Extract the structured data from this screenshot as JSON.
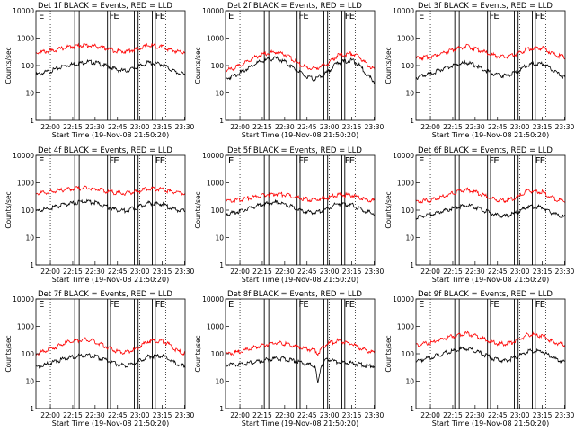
{
  "figure": {
    "xlabel": "Start Time (19-Nov-08 21:50:20)",
    "ylabel": "Counts/sec",
    "x_tick_labels": [
      "22:00",
      "22:15",
      "22:30",
      "22:45",
      "23:00",
      "23:15",
      "23:30"
    ],
    "y_tick_labels": [
      "1",
      "10",
      "100",
      "1000",
      "10000"
    ],
    "colors": {
      "events": "#000000",
      "lld": "#ff0000"
    }
  },
  "chart_data": [
    {
      "type": "line",
      "title": "Det 1f BLACK = Events, RED = LLD",
      "xlabel": "Start Time (19-Nov-08 21:50:20)",
      "ylabel": "Counts/sec",
      "x_unit": "minutes after 21:50:20",
      "xlim": [
        0,
        100
      ],
      "ylim": [
        1,
        10000
      ],
      "yscale": "log",
      "x_ticks": [
        "22:00",
        "22:15",
        "22:30",
        "22:45",
        "23:00",
        "23:15",
        "23:30"
      ],
      "y_ticks": [
        "1",
        "10",
        "100",
        "1000",
        "10000"
      ],
      "flag_labels": [
        "F",
        "E",
        "F",
        "E"
      ],
      "series": [
        {
          "color": "#000000",
          "x": [
            0,
            10,
            20,
            30,
            34,
            40,
            50,
            55,
            60,
            68,
            75,
            85,
            90,
            95,
            100
          ],
          "values": [
            50,
            70,
            110,
            135,
            150,
            140,
            95,
            75,
            70,
            95,
            140,
            120,
            80,
            60,
            50
          ]
        },
        {
          "color": "#ff0000",
          "x": [
            0,
            10,
            20,
            30,
            34,
            40,
            50,
            55,
            60,
            68,
            75,
            85,
            90,
            95,
            100
          ],
          "values": [
            330,
            370,
            500,
            600,
            600,
            560,
            420,
            370,
            360,
            440,
            600,
            520,
            400,
            360,
            350
          ]
        }
      ]
    },
    {
      "type": "line",
      "title": "Det 2f BLACK = Events, RED = LLD",
      "xlabel": "Start Time (19-Nov-08 21:50:20)",
      "ylabel": "Counts/sec",
      "x_unit": "minutes after 21:50:20",
      "xlim": [
        0,
        100
      ],
      "ylim": [
        1,
        10000
      ],
      "yscale": "log",
      "x_ticks": [
        "22:00",
        "22:15",
        "22:30",
        "22:45",
        "23:00",
        "23:15",
        "23:30"
      ],
      "y_ticks": [
        "1",
        "10",
        "100",
        "1000",
        "10000"
      ],
      "flag_labels": [
        "F",
        "E",
        "F",
        "E"
      ],
      "series": [
        {
          "color": "#000000",
          "x": [
            0,
            10,
            20,
            30,
            34,
            40,
            50,
            55,
            60,
            68,
            75,
            85,
            90,
            95,
            100
          ],
          "values": [
            35,
            60,
            130,
            190,
            200,
            150,
            60,
            40,
            35,
            60,
            140,
            170,
            110,
            50,
            28
          ]
        },
        {
          "color": "#ff0000",
          "x": [
            0,
            10,
            20,
            30,
            34,
            40,
            50,
            55,
            60,
            68,
            75,
            85,
            90,
            95,
            100
          ],
          "values": [
            70,
            110,
            230,
            330,
            340,
            280,
            120,
            90,
            85,
            120,
            250,
            300,
            220,
            120,
            75
          ]
        }
      ]
    },
    {
      "type": "line",
      "title": "Det 3f BLACK = Events, RED = LLD",
      "xlabel": "Start Time (19-Nov-08 21:50:20)",
      "ylabel": "Counts/sec",
      "x_unit": "minutes after 21:50:20",
      "xlim": [
        0,
        100
      ],
      "ylim": [
        1,
        10000
      ],
      "yscale": "log",
      "x_ticks": [
        "22:00",
        "22:15",
        "22:30",
        "22:45",
        "23:00",
        "23:15",
        "23:30"
      ],
      "y_ticks": [
        "1",
        "10",
        "100",
        "1000",
        "10000"
      ],
      "flag_labels": [
        "F",
        "E",
        "F",
        "E"
      ],
      "series": [
        {
          "color": "#000000",
          "x": [
            0,
            10,
            20,
            30,
            34,
            40,
            50,
            55,
            60,
            68,
            75,
            85,
            90,
            95,
            100
          ],
          "values": [
            40,
            55,
            90,
            130,
            140,
            110,
            60,
            50,
            45,
            65,
            120,
            130,
            85,
            55,
            40
          ]
        },
        {
          "color": "#ff0000",
          "x": [
            0,
            10,
            20,
            30,
            34,
            40,
            50,
            55,
            60,
            68,
            75,
            85,
            90,
            95,
            100
          ],
          "values": [
            200,
            230,
            350,
            500,
            550,
            450,
            280,
            240,
            230,
            290,
            450,
            480,
            340,
            250,
            220
          ]
        }
      ]
    },
    {
      "type": "line",
      "title": "Det 4f BLACK = Events, RED = LLD",
      "xlabel": "Start Time (19-Nov-08 21:50:20)",
      "ylabel": "Counts/sec",
      "x_unit": "minutes after 21:50:20",
      "xlim": [
        0,
        100
      ],
      "ylim": [
        1,
        10000
      ],
      "yscale": "log",
      "x_ticks": [
        "22:00",
        "22:15",
        "22:30",
        "22:45",
        "23:00",
        "23:15",
        "23:30"
      ],
      "y_ticks": [
        "1",
        "10",
        "100",
        "1000",
        "10000"
      ],
      "flag_labels": [
        "F",
        "E",
        "F",
        "E"
      ],
      "series": [
        {
          "color": "#000000",
          "x": [
            0,
            10,
            20,
            30,
            34,
            40,
            50,
            55,
            60,
            68,
            75,
            85,
            90,
            95,
            100
          ],
          "values": [
            100,
            130,
            180,
            220,
            230,
            200,
            130,
            110,
            105,
            140,
            200,
            180,
            130,
            110,
            100
          ]
        },
        {
          "color": "#ff0000",
          "x": [
            0,
            10,
            20,
            30,
            34,
            40,
            50,
            55,
            60,
            68,
            75,
            85,
            90,
            95,
            100
          ],
          "values": [
            450,
            500,
            620,
            700,
            720,
            650,
            500,
            460,
            450,
            520,
            680,
            620,
            520,
            480,
            450
          ]
        }
      ]
    },
    {
      "type": "line",
      "title": "Det 5f BLACK = Events, RED = LLD",
      "xlabel": "Start Time (19-Nov-08 21:50:20)",
      "ylabel": "Counts/sec",
      "x_unit": "minutes after 21:50:20",
      "xlim": [
        0,
        100
      ],
      "ylim": [
        1,
        10000
      ],
      "yscale": "log",
      "x_ticks": [
        "22:00",
        "22:15",
        "22:30",
        "22:45",
        "23:00",
        "23:15",
        "23:30"
      ],
      "y_ticks": [
        "1",
        "10",
        "100",
        "1000",
        "10000"
      ],
      "flag_labels": [
        "F",
        "E",
        "F",
        "E"
      ],
      "series": [
        {
          "color": "#000000",
          "x": [
            0,
            10,
            20,
            30,
            34,
            40,
            50,
            55,
            60,
            68,
            75,
            85,
            90,
            95,
            100
          ],
          "values": [
            80,
            100,
            150,
            200,
            210,
            180,
            110,
            95,
            90,
            120,
            190,
            170,
            120,
            95,
            80
          ]
        },
        {
          "color": "#ff0000",
          "x": [
            0,
            10,
            20,
            30,
            34,
            40,
            50,
            55,
            60,
            68,
            75,
            85,
            90,
            95,
            100
          ],
          "values": [
            240,
            270,
            340,
            420,
            440,
            400,
            290,
            270,
            260,
            300,
            400,
            380,
            300,
            260,
            240
          ]
        }
      ]
    },
    {
      "type": "line",
      "title": "Det 6f BLACK = Events, RED = LLD",
      "xlabel": "Start Time (19-Nov-08 21:50:20)",
      "ylabel": "Counts/sec",
      "x_unit": "minutes after 21:50:20",
      "xlim": [
        0,
        100
      ],
      "ylim": [
        1,
        10000
      ],
      "yscale": "log",
      "x_ticks": [
        "22:00",
        "22:15",
        "22:30",
        "22:45",
        "23:00",
        "23:15",
        "23:30"
      ],
      "y_ticks": [
        "1",
        "10",
        "100",
        "1000",
        "10000"
      ],
      "flag_labels": [
        "F",
        "E",
        "F",
        "E"
      ],
      "series": [
        {
          "color": "#000000",
          "x": [
            0,
            10,
            20,
            30,
            34,
            40,
            50,
            55,
            60,
            68,
            75,
            85,
            90,
            95,
            100
          ],
          "values": [
            60,
            75,
            110,
            150,
            160,
            140,
            85,
            70,
            65,
            90,
            150,
            140,
            95,
            70,
            60
          ]
        },
        {
          "color": "#ff0000",
          "x": [
            0,
            10,
            20,
            30,
            34,
            40,
            50,
            55,
            60,
            68,
            75,
            85,
            90,
            95,
            100
          ],
          "values": [
            220,
            250,
            380,
            550,
            600,
            500,
            300,
            260,
            250,
            320,
            560,
            500,
            340,
            260,
            230
          ]
        }
      ]
    },
    {
      "type": "line",
      "title": "Det 7f BLACK = Events, RED = LLD",
      "xlabel": "Start Time (19-Nov-08 21:50:20)",
      "ylabel": "Counts/sec",
      "x_unit": "minutes after 21:50:20",
      "xlim": [
        0,
        100
      ],
      "ylim": [
        1,
        10000
      ],
      "yscale": "log",
      "x_ticks": [
        "22:00",
        "22:15",
        "22:30",
        "22:45",
        "23:00",
        "23:15",
        "23:30"
      ],
      "y_ticks": [
        "1",
        "10",
        "100",
        "1000",
        "10000"
      ],
      "flag_labels": [
        "F",
        "E",
        "F",
        "E"
      ],
      "series": [
        {
          "color": "#000000",
          "x": [
            0,
            10,
            20,
            30,
            34,
            40,
            50,
            55,
            60,
            68,
            75,
            85,
            90,
            95,
            100
          ],
          "values": [
            35,
            50,
            75,
            95,
            100,
            85,
            55,
            45,
            40,
            55,
            85,
            90,
            65,
            45,
            38
          ]
        },
        {
          "color": "#ff0000",
          "x": [
            0,
            10,
            20,
            30,
            34,
            40,
            50,
            55,
            60,
            68,
            75,
            85,
            90,
            95,
            100
          ],
          "values": [
            110,
            160,
            280,
            350,
            370,
            300,
            170,
            130,
            120,
            170,
            320,
            330,
            220,
            140,
            110
          ]
        }
      ]
    },
    {
      "type": "line",
      "title": "Det 8f BLACK = Events, RED = LLD",
      "xlabel": "Start Time (19-Nov-08 21:50:20)",
      "ylabel": "Counts/sec",
      "x_unit": "minutes after 21:50:20",
      "xlim": [
        0,
        100
      ],
      "ylim": [
        1,
        10000
      ],
      "yscale": "log",
      "x_ticks": [
        "22:00",
        "22:15",
        "22:30",
        "22:45",
        "23:00",
        "23:15",
        "23:30"
      ],
      "y_ticks": [
        "1",
        "10",
        "100",
        "1000",
        "10000"
      ],
      "flag_labels": [
        "F",
        "E",
        "F",
        "E"
      ],
      "series": [
        {
          "color": "#000000",
          "x": [
            0,
            10,
            20,
            30,
            34,
            40,
            50,
            55,
            60,
            62,
            64,
            68,
            75,
            85,
            90,
            95,
            100
          ],
          "values": [
            45,
            45,
            55,
            70,
            75,
            70,
            55,
            45,
            40,
            8,
            40,
            70,
            55,
            50,
            45,
            40,
            40
          ]
        },
        {
          "color": "#ff0000",
          "x": [
            0,
            10,
            20,
            30,
            34,
            40,
            50,
            55,
            60,
            62,
            64,
            68,
            75,
            85,
            90,
            95,
            100
          ],
          "values": [
            110,
            130,
            190,
            260,
            280,
            250,
            190,
            160,
            150,
            110,
            160,
            250,
            330,
            250,
            180,
            140,
            120
          ]
        }
      ]
    },
    {
      "type": "line",
      "title": "Det 9f BLACK = Events, RED = LLD",
      "xlabel": "Start Time (19-Nov-08 21:50:20)",
      "ylabel": "Counts/sec",
      "x_unit": "minutes after 21:50:20",
      "xlim": [
        0,
        100
      ],
      "ylim": [
        1,
        10000
      ],
      "yscale": "log",
      "x_ticks": [
        "22:00",
        "22:15",
        "22:30",
        "22:45",
        "23:00",
        "23:15",
        "23:30"
      ],
      "y_ticks": [
        "1",
        "10",
        "100",
        "1000",
        "10000"
      ],
      "flag_labels": [
        "F",
        "E",
        "F",
        "E"
      ],
      "series": [
        {
          "color": "#000000",
          "x": [
            0,
            10,
            20,
            30,
            34,
            40,
            50,
            55,
            60,
            68,
            75,
            85,
            90,
            95,
            100
          ],
          "values": [
            60,
            80,
            120,
            160,
            170,
            140,
            80,
            65,
            60,
            85,
            140,
            130,
            90,
            65,
            55
          ]
        },
        {
          "color": "#ff0000",
          "x": [
            0,
            10,
            20,
            30,
            34,
            40,
            50,
            55,
            60,
            68,
            75,
            85,
            90,
            95,
            100
          ],
          "values": [
            230,
            280,
            420,
            550,
            600,
            500,
            300,
            260,
            250,
            330,
            560,
            500,
            340,
            260,
            230
          ]
        }
      ]
    }
  ]
}
